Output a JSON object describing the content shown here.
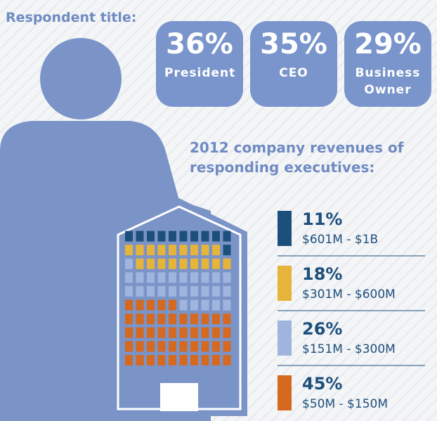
{
  "respondent_title": {
    "label": "Respondent title:",
    "categories": [
      "President",
      "CEO",
      "Business Owner"
    ],
    "values": [
      36,
      35,
      29
    ],
    "value_labels": [
      "36%",
      "35%",
      "29%"
    ]
  },
  "chart_data": {
    "type": "waffle",
    "title": "2012 company revenues of responding executives:",
    "categories": [
      "$601M - $1B",
      "$301M - $600M",
      "$151M - $300M",
      "$50M - $150M"
    ],
    "values": [
      11,
      18,
      26,
      45
    ],
    "value_labels": [
      "11%",
      "18%",
      "26%",
      "45%"
    ],
    "colors": [
      "#1d4f7c",
      "#e6b43a",
      "#9fb5de",
      "#d4691f"
    ]
  }
}
